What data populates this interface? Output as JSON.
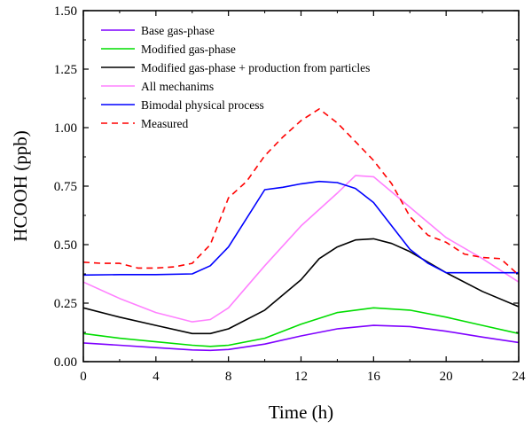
{
  "chart_data": {
    "type": "line",
    "title": "",
    "xlabel": "Time (h)",
    "ylabel": "HCOOH (ppb)",
    "xlim": [
      0,
      24
    ],
    "ylim": [
      0,
      1.5
    ],
    "xticks": [
      0,
      4,
      8,
      12,
      16,
      20,
      24
    ],
    "yticks": [
      0.0,
      0.25,
      0.5,
      0.75,
      1.0,
      1.25,
      1.5
    ],
    "xtick_labels": [
      "0",
      "4",
      "8",
      "12",
      "16",
      "20",
      "24"
    ],
    "ytick_labels": [
      "0.00",
      "0.25",
      "0.50",
      "0.75",
      "1.00",
      "1.25",
      "1.50"
    ],
    "grid": false,
    "legend_position": "top-left",
    "series": [
      {
        "name": "Base gas-phase",
        "color": "#7f00ff",
        "dash": "solid",
        "x": [
          0,
          2,
          4,
          6,
          7,
          8,
          10,
          12,
          14,
          16,
          18,
          20,
          22,
          24
        ],
        "y": [
          0.08,
          0.07,
          0.06,
          0.05,
          0.048,
          0.052,
          0.075,
          0.11,
          0.14,
          0.155,
          0.15,
          0.13,
          0.105,
          0.082
        ]
      },
      {
        "name": "Modified gas-phase",
        "color": "#00dd00",
        "dash": "solid",
        "x": [
          0,
          2,
          4,
          6,
          7,
          8,
          10,
          12,
          14,
          16,
          18,
          20,
          22,
          24
        ],
        "y": [
          0.12,
          0.1,
          0.085,
          0.07,
          0.065,
          0.07,
          0.1,
          0.16,
          0.21,
          0.23,
          0.22,
          0.19,
          0.155,
          0.12
        ]
      },
      {
        "name": "Modified gas-phase + production from particles",
        "color": "#000000",
        "dash": "solid",
        "x": [
          0,
          2,
          4,
          6,
          7,
          8,
          10,
          12,
          13,
          14,
          15,
          16,
          17,
          18,
          20,
          22,
          24
        ],
        "y": [
          0.23,
          0.19,
          0.155,
          0.12,
          0.12,
          0.14,
          0.22,
          0.35,
          0.44,
          0.49,
          0.52,
          0.525,
          0.505,
          0.47,
          0.38,
          0.3,
          0.235
        ]
      },
      {
        "name": "All mechanims",
        "color": "#ff80ff",
        "dash": "solid",
        "x": [
          0,
          2,
          4,
          6,
          7,
          8,
          10,
          12,
          14,
          15,
          16,
          18,
          20,
          22,
          24
        ],
        "y": [
          0.34,
          0.27,
          0.21,
          0.17,
          0.18,
          0.23,
          0.41,
          0.58,
          0.72,
          0.795,
          0.79,
          0.66,
          0.53,
          0.44,
          0.34
        ]
      },
      {
        "name": "Bimodal physical process",
        "color": "#0000ff",
        "dash": "solid",
        "x": [
          0,
          2,
          4,
          6,
          7,
          8,
          10,
          11,
          12,
          13,
          14,
          15,
          16,
          18,
          19,
          20,
          22,
          24
        ],
        "y": [
          0.37,
          0.372,
          0.372,
          0.375,
          0.41,
          0.49,
          0.735,
          0.745,
          0.76,
          0.77,
          0.765,
          0.74,
          0.68,
          0.48,
          0.42,
          0.38,
          0.38,
          0.38
        ]
      },
      {
        "name": "Measured",
        "color": "#ff0000",
        "dash": "dashed",
        "x": [
          0,
          1,
          2,
          3,
          4,
          5,
          6,
          7,
          8,
          9,
          10,
          11,
          12,
          13,
          14,
          15,
          16,
          17,
          18,
          19,
          20,
          21,
          22,
          23,
          24
        ],
        "y": [
          0.425,
          0.42,
          0.42,
          0.4,
          0.4,
          0.405,
          0.42,
          0.5,
          0.7,
          0.77,
          0.88,
          0.96,
          1.03,
          1.08,
          1.02,
          0.94,
          0.86,
          0.76,
          0.62,
          0.54,
          0.51,
          0.46,
          0.445,
          0.44,
          0.37
        ]
      }
    ]
  }
}
